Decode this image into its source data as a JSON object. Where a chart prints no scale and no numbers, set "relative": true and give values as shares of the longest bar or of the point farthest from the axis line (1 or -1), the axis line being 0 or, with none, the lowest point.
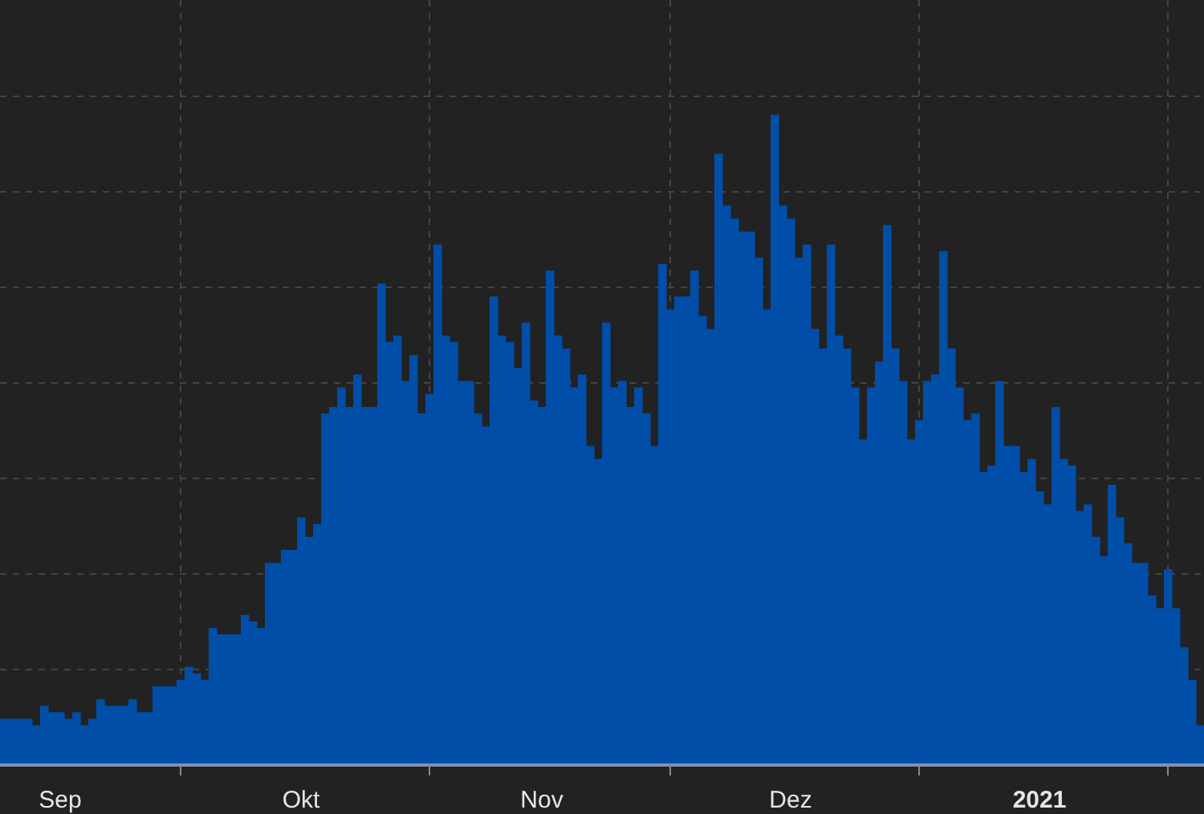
{
  "chart_data": {
    "type": "bar",
    "relative": true,
    "color": "#004ea8",
    "grid": true,
    "xlim": [
      "2020-09-08T12:00",
      "2021-02-05T12:00"
    ],
    "xticks": [
      {
        "value": "2020-09-16",
        "label": "Sep"
      },
      {
        "value": "2020-10-01",
        "label": null
      },
      {
        "value": "2020-10-16",
        "label": "Okt"
      },
      {
        "value": "2020-11-01",
        "label": null
      },
      {
        "value": "2020-11-15",
        "label": "Nov"
      },
      {
        "value": "2020-12-01",
        "label": null
      },
      {
        "value": "2020-12-16",
        "label": "Dez"
      },
      {
        "value": "2021-01-01",
        "label": null
      },
      {
        "value": "2021-01-16",
        "label": "2021"
      },
      {
        "value": "2021-02-01",
        "label": null
      }
    ],
    "x": [
      "2020-09-09",
      "2020-09-10",
      "2020-09-11",
      "2020-09-12",
      "2020-09-13",
      "2020-09-14",
      "2020-09-15",
      "2020-09-16",
      "2020-09-17",
      "2020-09-18",
      "2020-09-19",
      "2020-09-20",
      "2020-09-21",
      "2020-09-22",
      "2020-09-23",
      "2020-09-24",
      "2020-09-25",
      "2020-09-26",
      "2020-09-27",
      "2020-09-28",
      "2020-09-29",
      "2020-09-30",
      "2020-10-01",
      "2020-10-02",
      "2020-10-03",
      "2020-10-04",
      "2020-10-05",
      "2020-10-06",
      "2020-10-07",
      "2020-10-08",
      "2020-10-09",
      "2020-10-10",
      "2020-10-11",
      "2020-10-12",
      "2020-10-13",
      "2020-10-14",
      "2020-10-15",
      "2020-10-16",
      "2020-10-17",
      "2020-10-18",
      "2020-10-19",
      "2020-10-20",
      "2020-10-21",
      "2020-10-22",
      "2020-10-23",
      "2020-10-24",
      "2020-10-25",
      "2020-10-26",
      "2020-10-27",
      "2020-10-28",
      "2020-10-29",
      "2020-10-30",
      "2020-10-31",
      "2020-11-01",
      "2020-11-02",
      "2020-11-03",
      "2020-11-04",
      "2020-11-05",
      "2020-11-06",
      "2020-11-07",
      "2020-11-08",
      "2020-11-09",
      "2020-11-10",
      "2020-11-11",
      "2020-11-12",
      "2020-11-13",
      "2020-11-14",
      "2020-11-15",
      "2020-11-16",
      "2020-11-17",
      "2020-11-18",
      "2020-11-19",
      "2020-11-20",
      "2020-11-21",
      "2020-11-22",
      "2020-11-23",
      "2020-11-24",
      "2020-11-25",
      "2020-11-26",
      "2020-11-27",
      "2020-11-28",
      "2020-11-29",
      "2020-11-30",
      "2020-12-01",
      "2020-12-02",
      "2020-12-03",
      "2020-12-04",
      "2020-12-05",
      "2020-12-06",
      "2020-12-07",
      "2020-12-08",
      "2020-12-09",
      "2020-12-10",
      "2020-12-11",
      "2020-12-12",
      "2020-12-13",
      "2020-12-14",
      "2020-12-15",
      "2020-12-16",
      "2020-12-17",
      "2020-12-18",
      "2020-12-19",
      "2020-12-20",
      "2020-12-21",
      "2020-12-22",
      "2020-12-23",
      "2020-12-24",
      "2020-12-25",
      "2020-12-26",
      "2020-12-27",
      "2020-12-28",
      "2020-12-29",
      "2020-12-30",
      "2020-12-31",
      "2021-01-01",
      "2021-01-02",
      "2021-01-03",
      "2021-01-04",
      "2021-01-05",
      "2021-01-06",
      "2021-01-07",
      "2021-01-08",
      "2021-01-09",
      "2021-01-10",
      "2021-01-11",
      "2021-01-12",
      "2021-01-13",
      "2021-01-14",
      "2021-01-15",
      "2021-01-16",
      "2021-01-17",
      "2021-01-18",
      "2021-01-19",
      "2021-01-20",
      "2021-01-21",
      "2021-01-22",
      "2021-01-23",
      "2021-01-24",
      "2021-01-25",
      "2021-01-26",
      "2021-01-27",
      "2021-01-28",
      "2021-01-29",
      "2021-01-30",
      "2021-01-31",
      "2021-02-01",
      "2021-02-02",
      "2021-02-03",
      "2021-02-04",
      "2021-02-05"
    ],
    "values": [
      0.07,
      0.07,
      0.07,
      0.07,
      0.06,
      0.09,
      0.08,
      0.08,
      0.07,
      0.08,
      0.06,
      0.07,
      0.1,
      0.09,
      0.09,
      0.09,
      0.1,
      0.08,
      0.08,
      0.12,
      0.12,
      0.12,
      0.13,
      0.15,
      0.14,
      0.13,
      0.21,
      0.2,
      0.2,
      0.2,
      0.23,
      0.22,
      0.21,
      0.31,
      0.31,
      0.33,
      0.33,
      0.38,
      0.35,
      0.37,
      0.54,
      0.55,
      0.58,
      0.55,
      0.6,
      0.55,
      0.55,
      0.74,
      0.65,
      0.66,
      0.59,
      0.63,
      0.54,
      0.57,
      0.8,
      0.66,
      0.65,
      0.59,
      0.59,
      0.54,
      0.52,
      0.72,
      0.66,
      0.65,
      0.61,
      0.68,
      0.56,
      0.55,
      0.76,
      0.66,
      0.64,
      0.58,
      0.6,
      0.49,
      0.47,
      0.68,
      0.58,
      0.59,
      0.55,
      0.58,
      0.54,
      0.49,
      0.77,
      0.7,
      0.72,
      0.72,
      0.76,
      0.69,
      0.67,
      0.94,
      0.86,
      0.84,
      0.82,
      0.82,
      0.78,
      0.7,
      1,
      0.86,
      0.84,
      0.78,
      0.8,
      0.67,
      0.64,
      0.8,
      0.66,
      0.64,
      0.58,
      0.5,
      0.58,
      0.62,
      0.83,
      0.64,
      0.59,
      0.5,
      0.53,
      0.59,
      0.6,
      0.79,
      0.64,
      0.58,
      0.53,
      0.54,
      0.45,
      0.46,
      0.59,
      0.49,
      0.49,
      0.45,
      0.47,
      0.42,
      0.4,
      0.55,
      0.47,
      0.46,
      0.39,
      0.4,
      0.35,
      0.32,
      0.43,
      0.38,
      0.34,
      0.31,
      0.31,
      0.26,
      0.24,
      0.3,
      0.24,
      0.18,
      0.13,
      0.06
    ]
  }
}
